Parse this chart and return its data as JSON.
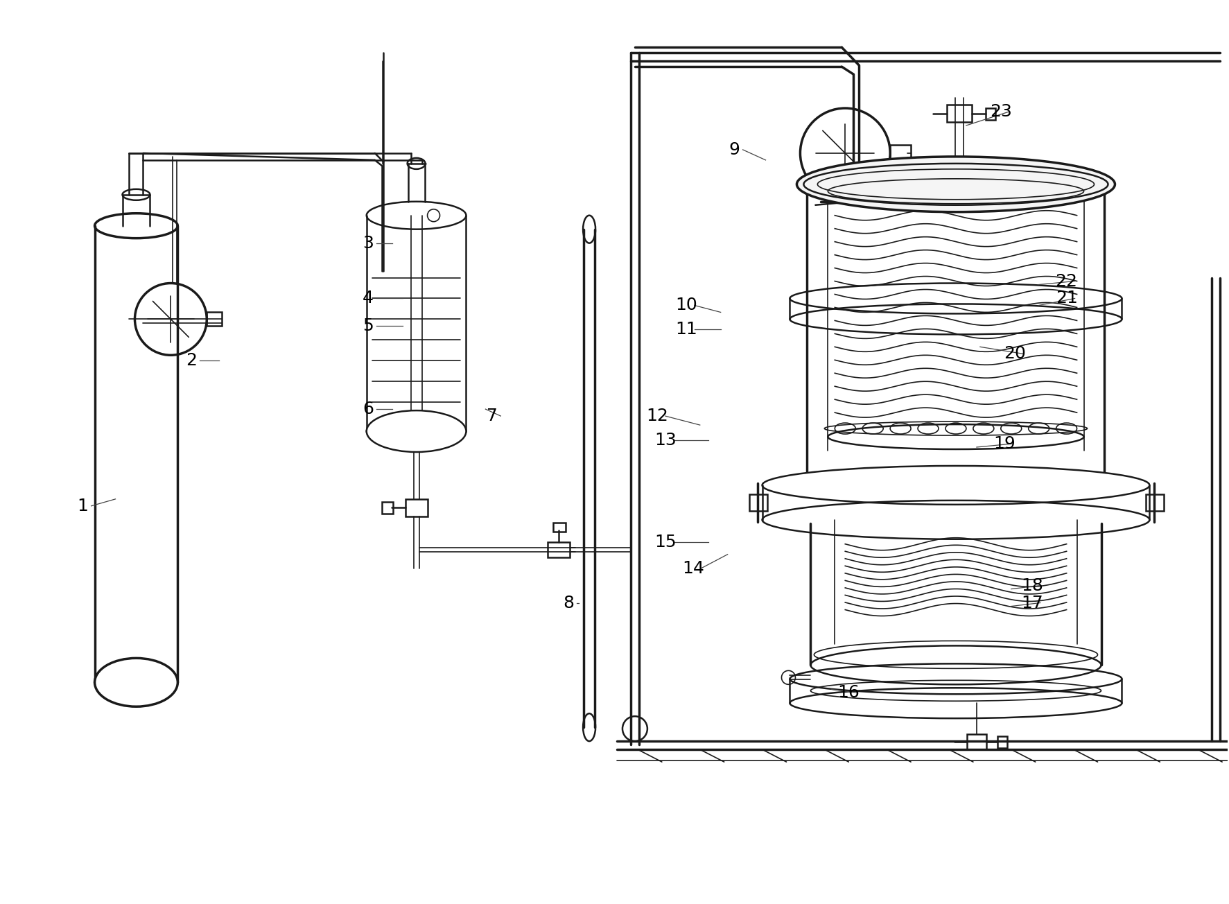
{
  "bg": "#ffffff",
  "lc": "#1a1a1a",
  "lw1": 1.2,
  "lw2": 1.8,
  "lw3": 2.5,
  "fw": 17.73,
  "fh": 13.04,
  "fs": 18,
  "label_positions": {
    "1": [
      118,
      730,
      165,
      720
    ],
    "2": [
      275,
      520,
      315,
      520
    ],
    "3": [
      530,
      350,
      565,
      350
    ],
    "4": [
      530,
      430,
      580,
      430
    ],
    "5": [
      530,
      470,
      580,
      470
    ],
    "6": [
      530,
      590,
      565,
      590
    ],
    "7": [
      710,
      600,
      700,
      590
    ],
    "8": [
      820,
      870,
      835,
      870
    ],
    "9": [
      1060,
      215,
      1105,
      230
    ],
    "10": [
      990,
      440,
      1040,
      450
    ],
    "11": [
      990,
      475,
      1040,
      475
    ],
    "12": [
      948,
      600,
      1010,
      613
    ],
    "13": [
      960,
      635,
      1022,
      635
    ],
    "14": [
      1000,
      820,
      1050,
      800
    ],
    "15": [
      960,
      782,
      1022,
      782
    ],
    "16": [
      1225,
      1000,
      1200,
      995
    ],
    "17": [
      1490,
      870,
      1460,
      875
    ],
    "18": [
      1490,
      845,
      1460,
      850
    ],
    "19": [
      1450,
      640,
      1410,
      645
    ],
    "20": [
      1465,
      510,
      1415,
      500
    ],
    "21": [
      1540,
      430,
      1500,
      440
    ],
    "22": [
      1540,
      405,
      1500,
      410
    ],
    "23": [
      1445,
      160,
      1395,
      180
    ]
  }
}
